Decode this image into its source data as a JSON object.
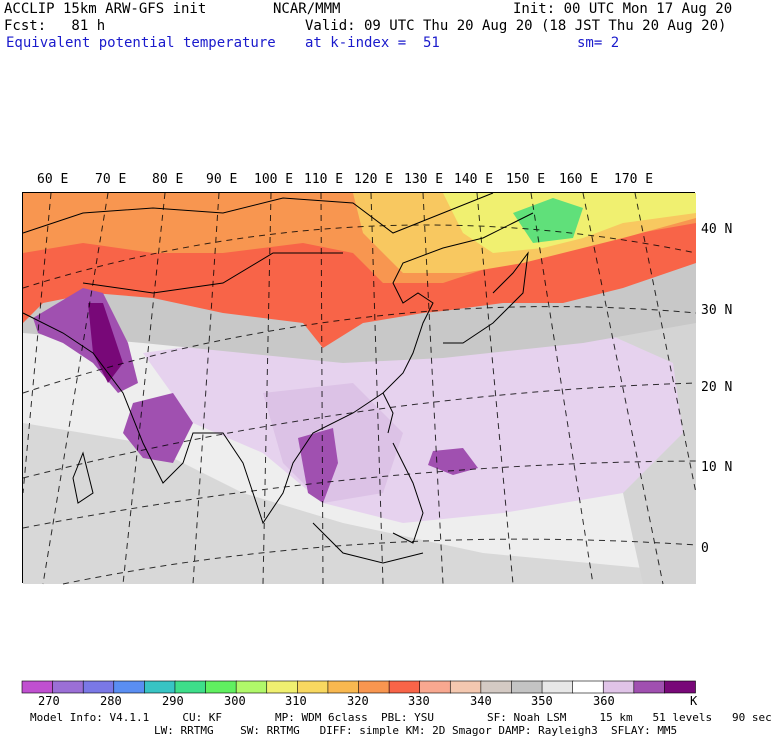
{
  "header": {
    "line1_left": "ACCLIP 15km ARW-GFS init",
    "line1_mid": "NCAR/MMM",
    "line1_right": "Init: 00 UTC Mon 17 Aug 20",
    "line2_left": "Fcst:   81 h",
    "line2_right": "Valid: 09 UTC Thu 20 Aug 20 (18 JST Thu 20 Aug 20)",
    "field": "Equivalent potential temperature",
    "level": "at k-index =  51",
    "smooth": "sm= 2"
  },
  "map": {
    "lon_labels": [
      "60 E",
      "70 E",
      "80 E",
      "90 E",
      "100 E",
      "110 E",
      "120 E",
      "130 E",
      "140 E",
      "150 E",
      "160 E",
      "170 E"
    ],
    "lat_labels": [
      "40 N",
      "30 N",
      "20 N",
      "10 N",
      "0"
    ]
  },
  "colorbar": {
    "unit": "K",
    "labels": [
      "270",
      "280",
      "290",
      "300",
      "310",
      "320",
      "330",
      "340",
      "350",
      "360"
    ],
    "colors": [
      "#c050d0",
      "#9b6fd6",
      "#7a78e6",
      "#5a8ef2",
      "#38c4c4",
      "#3ede8a",
      "#60f060",
      "#b0f86a",
      "#f0f070",
      "#f8d860",
      "#f8b850",
      "#f89650",
      "#f86448",
      "#f8a890",
      "#f4c8b0",
      "#d4cac4",
      "#c4c4c4",
      "#e8e8e8",
      "#ffffff",
      "#e0c4e8",
      "#a050b0",
      "#780878"
    ]
  },
  "footer": {
    "line1": "Model Info: V4.1.1     CU: KF        MP: WDM 6class  PBL: YSU        SF: Noah LSM     15 km   51 levels   90 sec",
    "line2": "LW: RRTMG    SW: RRTMG   DIFF: simple KM: 2D Smagor DAMP: Rayleigh3  SFLAY: MM5"
  }
}
